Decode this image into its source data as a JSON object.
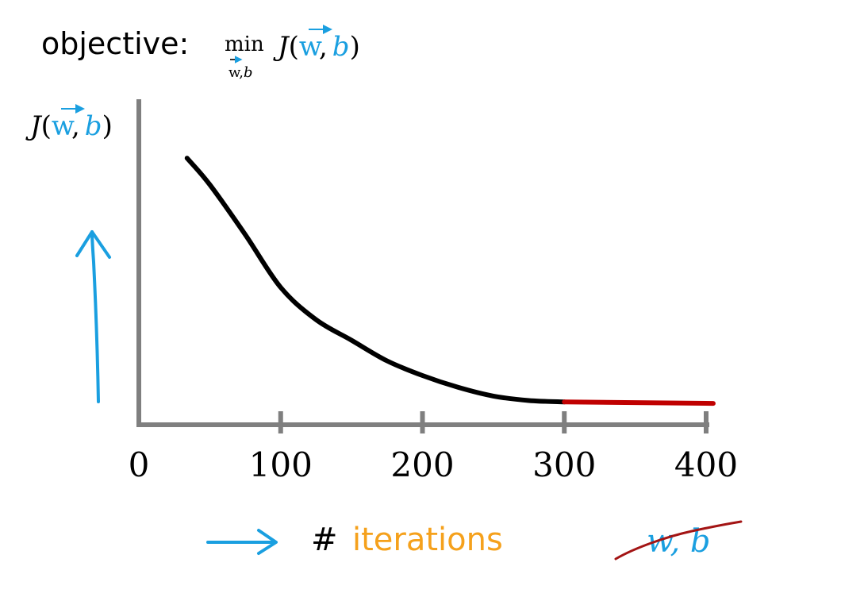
{
  "title": {
    "prefix": "objective:",
    "min_word": "min",
    "min_subscript_w": "w",
    "min_subscript_sep": ",",
    "min_subscript_b": "b",
    "func_name": "J",
    "open_paren": "(",
    "w": "w",
    "comma": ",",
    "b": "b",
    "close_paren": ")"
  },
  "y_label": {
    "func_name": "J",
    "open_paren": "(",
    "w": "w",
    "comma": ",",
    "b": "b",
    "close_paren": ")"
  },
  "x_label": {
    "hash": "#",
    "word": "iterations"
  },
  "crossed_out": {
    "text": "w, b"
  },
  "colors": {
    "axis": "#7f7f7f",
    "curve": "#000000",
    "converged": "#c00000",
    "blue": "#1a9fe0",
    "orange": "#f5a11c",
    "crossout": "#a31414"
  },
  "chart_data": {
    "type": "line",
    "title": "",
    "xlabel": "# iterations",
    "ylabel": "J(w, b)",
    "xlim": [
      0,
      400
    ],
    "ylim": [
      0,
      1
    ],
    "x_ticks": [
      0,
      100,
      200,
      300,
      400
    ],
    "x_tick_labels": [
      "0",
      "100",
      "200",
      "300",
      "400"
    ],
    "y_ticks_shown": false,
    "grid": false,
    "series": [
      {
        "x": [
          34,
          50,
          75,
          100,
          125,
          150,
          175,
          200,
          225,
          250,
          275,
          300
        ],
        "y": [
          0.84,
          0.75,
          0.58,
          0.4,
          0.29,
          0.22,
          0.15,
          0.1,
          0.06,
          0.03,
          0.015,
          0.01
        ]
      },
      {
        "x": [
          300,
          405
        ],
        "y": [
          0.01,
          0.005
        ]
      }
    ]
  }
}
